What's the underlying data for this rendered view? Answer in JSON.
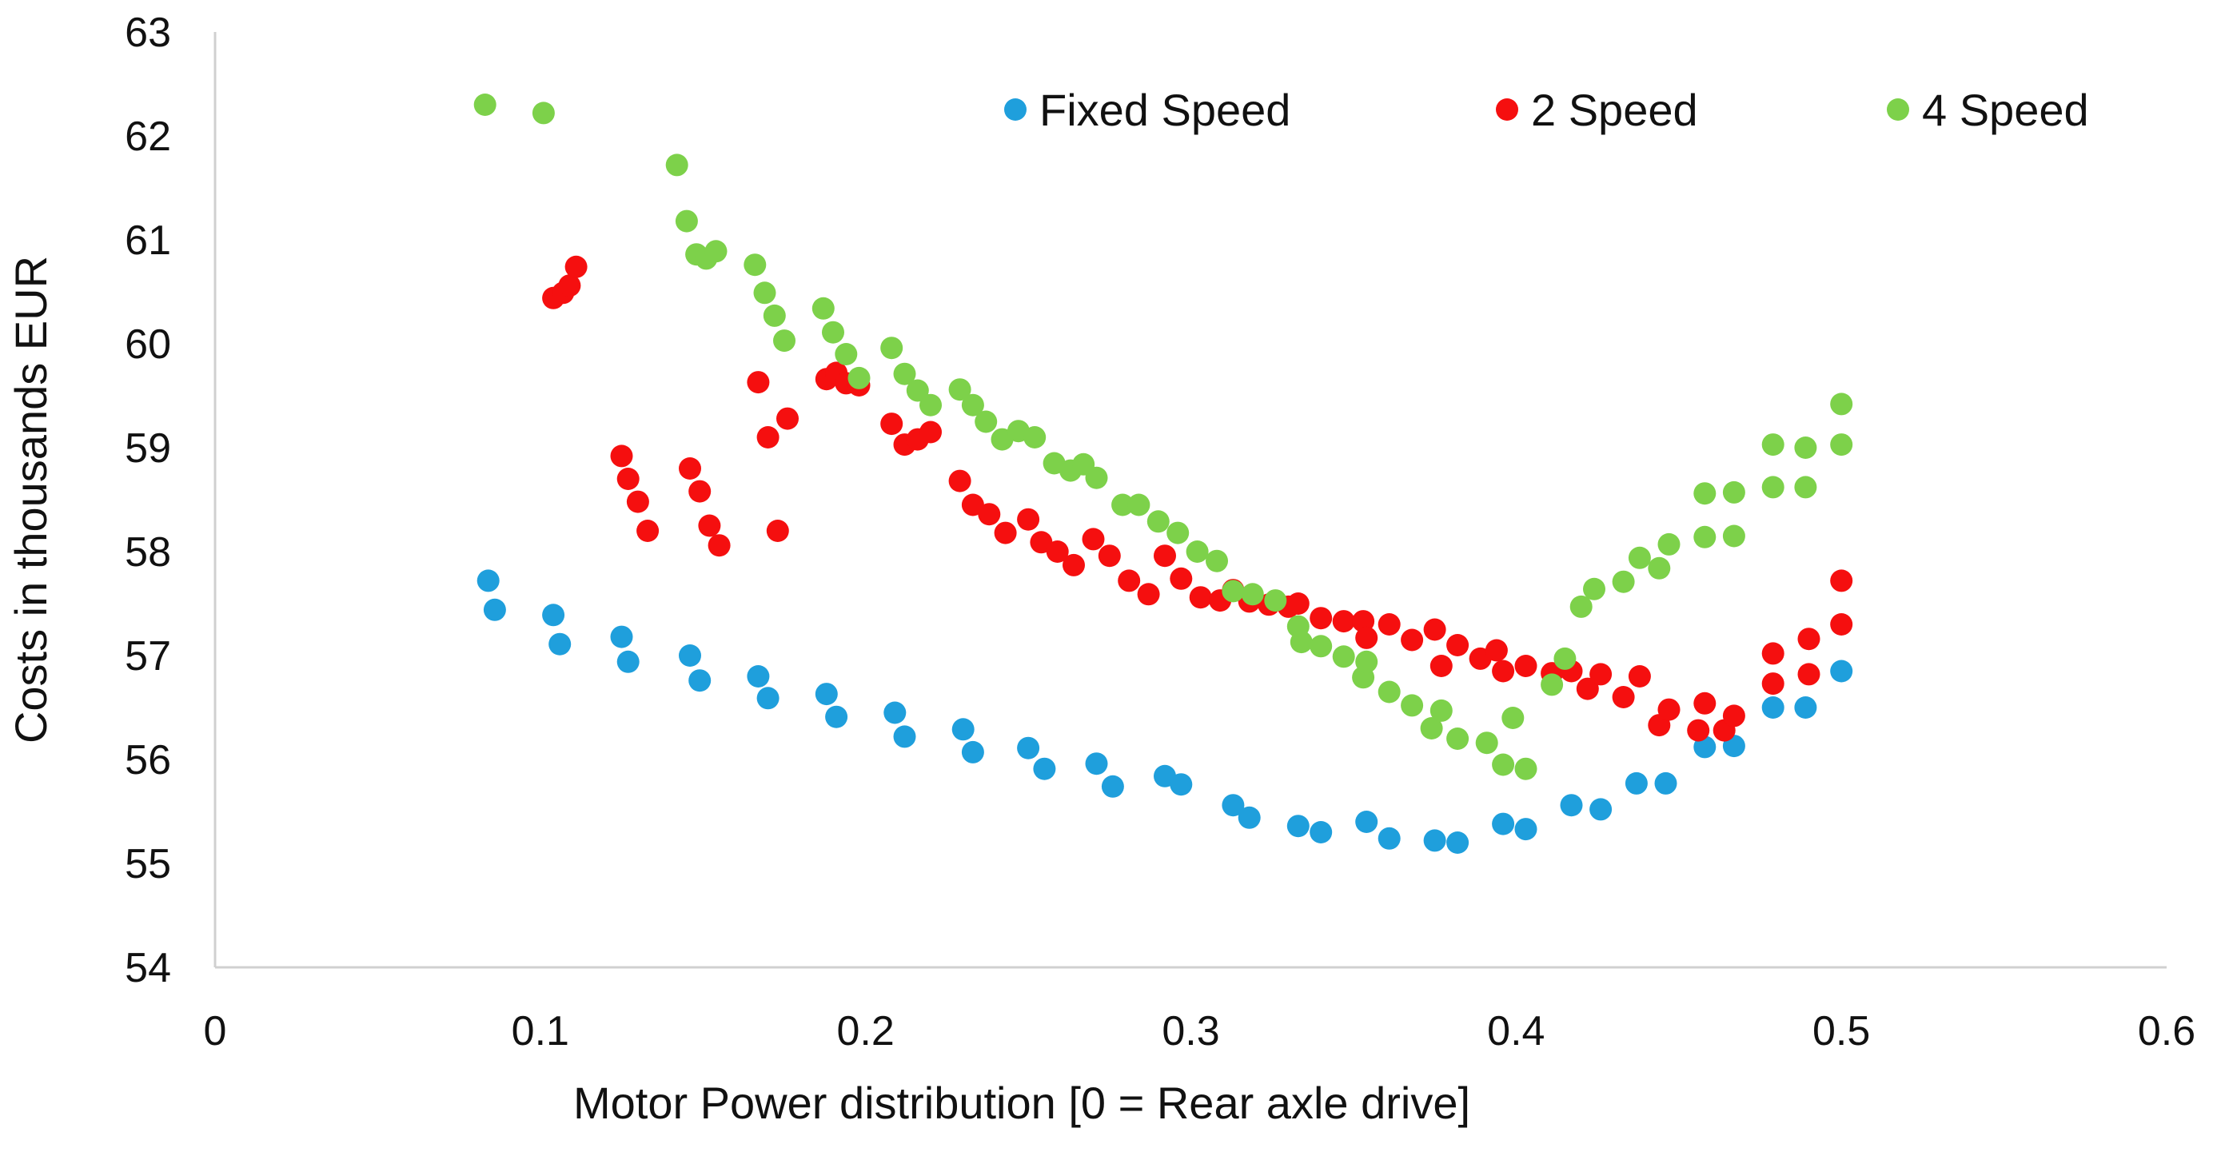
{
  "chart_data": {
    "type": "scatter",
    "title": "",
    "xlabel": "Motor Power distribution [0 = Rear axle drive]",
    "ylabel": "Costs in thousands EUR",
    "xlim": [
      0,
      0.6
    ],
    "ylim": [
      54,
      63
    ],
    "x_ticks": [
      "0",
      "0.1",
      "0.2",
      "0.3",
      "0.4",
      "0.5",
      "0.6"
    ],
    "y_ticks": [
      "54",
      "55",
      "56",
      "57",
      "58",
      "59",
      "60",
      "61",
      "62",
      "63"
    ],
    "grid": false,
    "legend_position": "top-right",
    "series": [
      {
        "name": "Fixed Speed",
        "color": "#1f9fdc",
        "points": [
          [
            0.084,
            57.72
          ],
          [
            0.086,
            57.44
          ],
          [
            0.104,
            57.39
          ],
          [
            0.106,
            57.11
          ],
          [
            0.125,
            57.18
          ],
          [
            0.127,
            56.94
          ],
          [
            0.146,
            57.0
          ],
          [
            0.149,
            56.76
          ],
          [
            0.167,
            56.8
          ],
          [
            0.17,
            56.59
          ],
          [
            0.188,
            56.63
          ],
          [
            0.191,
            56.41
          ],
          [
            0.209,
            56.45
          ],
          [
            0.212,
            56.22
          ],
          [
            0.23,
            56.29
          ],
          [
            0.233,
            56.07
          ],
          [
            0.25,
            56.11
          ],
          [
            0.255,
            55.91
          ],
          [
            0.271,
            55.96
          ],
          [
            0.276,
            55.74
          ],
          [
            0.292,
            55.84
          ],
          [
            0.297,
            55.76
          ],
          [
            0.313,
            55.56
          ],
          [
            0.318,
            55.44
          ],
          [
            0.333,
            55.36
          ],
          [
            0.34,
            55.3
          ],
          [
            0.354,
            55.4
          ],
          [
            0.361,
            55.24
          ],
          [
            0.375,
            55.22
          ],
          [
            0.382,
            55.2
          ],
          [
            0.396,
            55.38
          ],
          [
            0.403,
            55.33
          ],
          [
            0.417,
            55.56
          ],
          [
            0.426,
            55.52
          ],
          [
            0.437,
            55.77
          ],
          [
            0.446,
            55.77
          ],
          [
            0.458,
            56.12
          ],
          [
            0.467,
            56.13
          ],
          [
            0.479,
            56.5
          ],
          [
            0.489,
            56.5
          ],
          [
            0.5,
            56.85
          ]
        ]
      },
      {
        "name": "2 Speed",
        "color": "#f50f0f",
        "points": [
          [
            0.104,
            60.44
          ],
          [
            0.107,
            60.49
          ],
          [
            0.109,
            60.56
          ],
          [
            0.111,
            60.74
          ],
          [
            0.125,
            58.92
          ],
          [
            0.127,
            58.7
          ],
          [
            0.13,
            58.48
          ],
          [
            0.133,
            58.2
          ],
          [
            0.146,
            58.8
          ],
          [
            0.149,
            58.58
          ],
          [
            0.152,
            58.25
          ],
          [
            0.155,
            58.06
          ],
          [
            0.167,
            59.63
          ],
          [
            0.17,
            59.1
          ],
          [
            0.173,
            58.2
          ],
          [
            0.176,
            59.28
          ],
          [
            0.188,
            59.66
          ],
          [
            0.191,
            59.72
          ],
          [
            0.194,
            59.62
          ],
          [
            0.198,
            59.6
          ],
          [
            0.208,
            59.23
          ],
          [
            0.212,
            59.03
          ],
          [
            0.216,
            59.08
          ],
          [
            0.22,
            59.15
          ],
          [
            0.229,
            58.68
          ],
          [
            0.233,
            58.45
          ],
          [
            0.238,
            58.36
          ],
          [
            0.243,
            58.18
          ],
          [
            0.25,
            58.31
          ],
          [
            0.254,
            58.09
          ],
          [
            0.259,
            58.0
          ],
          [
            0.264,
            57.87
          ],
          [
            0.27,
            58.12
          ],
          [
            0.275,
            57.96
          ],
          [
            0.281,
            57.72
          ],
          [
            0.287,
            57.59
          ],
          [
            0.292,
            57.96
          ],
          [
            0.297,
            57.74
          ],
          [
            0.303,
            57.56
          ],
          [
            0.309,
            57.53
          ],
          [
            0.313,
            57.63
          ],
          [
            0.318,
            57.52
          ],
          [
            0.324,
            57.49
          ],
          [
            0.33,
            57.47
          ],
          [
            0.333,
            57.5
          ],
          [
            0.34,
            57.36
          ],
          [
            0.347,
            57.33
          ],
          [
            0.353,
            57.33
          ],
          [
            0.354,
            57.17
          ],
          [
            0.361,
            57.3
          ],
          [
            0.368,
            57.15
          ],
          [
            0.375,
            57.25
          ],
          [
            0.377,
            56.9
          ],
          [
            0.382,
            57.1
          ],
          [
            0.389,
            56.97
          ],
          [
            0.394,
            57.05
          ],
          [
            0.396,
            56.85
          ],
          [
            0.403,
            56.9
          ],
          [
            0.411,
            56.83
          ],
          [
            0.417,
            56.85
          ],
          [
            0.422,
            56.68
          ],
          [
            0.426,
            56.82
          ],
          [
            0.433,
            56.6
          ],
          [
            0.438,
            56.8
          ],
          [
            0.444,
            56.33
          ],
          [
            0.447,
            56.48
          ],
          [
            0.456,
            56.28
          ],
          [
            0.458,
            56.54
          ],
          [
            0.464,
            56.28
          ],
          [
            0.467,
            56.42
          ],
          [
            0.479,
            56.73
          ],
          [
            0.479,
            57.02
          ],
          [
            0.49,
            56.82
          ],
          [
            0.49,
            57.16
          ],
          [
            0.5,
            57.3
          ],
          [
            0.5,
            57.72
          ]
        ]
      },
      {
        "name": "4 Speed",
        "color": "#7dd14a",
        "points": [
          [
            0.083,
            62.3
          ],
          [
            0.101,
            62.22
          ],
          [
            0.142,
            61.72
          ],
          [
            0.145,
            61.18
          ],
          [
            0.148,
            60.86
          ],
          [
            0.151,
            60.82
          ],
          [
            0.154,
            60.89
          ],
          [
            0.166,
            60.76
          ],
          [
            0.169,
            60.49
          ],
          [
            0.172,
            60.27
          ],
          [
            0.175,
            60.03
          ],
          [
            0.187,
            60.34
          ],
          [
            0.19,
            60.11
          ],
          [
            0.194,
            59.9
          ],
          [
            0.198,
            59.67
          ],
          [
            0.208,
            59.96
          ],
          [
            0.212,
            59.71
          ],
          [
            0.216,
            59.55
          ],
          [
            0.22,
            59.41
          ],
          [
            0.229,
            59.56
          ],
          [
            0.233,
            59.41
          ],
          [
            0.237,
            59.25
          ],
          [
            0.242,
            59.08
          ],
          [
            0.247,
            59.16
          ],
          [
            0.252,
            59.1
          ],
          [
            0.258,
            58.85
          ],
          [
            0.263,
            58.78
          ],
          [
            0.267,
            58.84
          ],
          [
            0.271,
            58.71
          ],
          [
            0.279,
            58.45
          ],
          [
            0.284,
            58.45
          ],
          [
            0.29,
            58.29
          ],
          [
            0.296,
            58.18
          ],
          [
            0.302,
            58.0
          ],
          [
            0.308,
            57.91
          ],
          [
            0.313,
            57.62
          ],
          [
            0.319,
            57.59
          ],
          [
            0.326,
            57.53
          ],
          [
            0.333,
            57.28
          ],
          [
            0.334,
            57.13
          ],
          [
            0.34,
            57.09
          ],
          [
            0.347,
            56.99
          ],
          [
            0.353,
            56.79
          ],
          [
            0.354,
            56.94
          ],
          [
            0.361,
            56.65
          ],
          [
            0.368,
            56.52
          ],
          [
            0.374,
            56.3
          ],
          [
            0.377,
            56.47
          ],
          [
            0.382,
            56.2
          ],
          [
            0.391,
            56.16
          ],
          [
            0.396,
            55.95
          ],
          [
            0.399,
            56.4
          ],
          [
            0.403,
            55.91
          ],
          [
            0.411,
            56.72
          ],
          [
            0.415,
            56.97
          ],
          [
            0.42,
            57.47
          ],
          [
            0.424,
            57.64
          ],
          [
            0.433,
            57.71
          ],
          [
            0.438,
            57.94
          ],
          [
            0.444,
            57.84
          ],
          [
            0.447,
            58.07
          ],
          [
            0.458,
            58.14
          ],
          [
            0.458,
            58.56
          ],
          [
            0.467,
            58.15
          ],
          [
            0.467,
            58.57
          ],
          [
            0.479,
            58.62
          ],
          [
            0.479,
            59.03
          ],
          [
            0.489,
            58.62
          ],
          [
            0.489,
            59.0
          ],
          [
            0.5,
            59.03
          ],
          [
            0.5,
            59.42
          ]
        ]
      }
    ]
  }
}
